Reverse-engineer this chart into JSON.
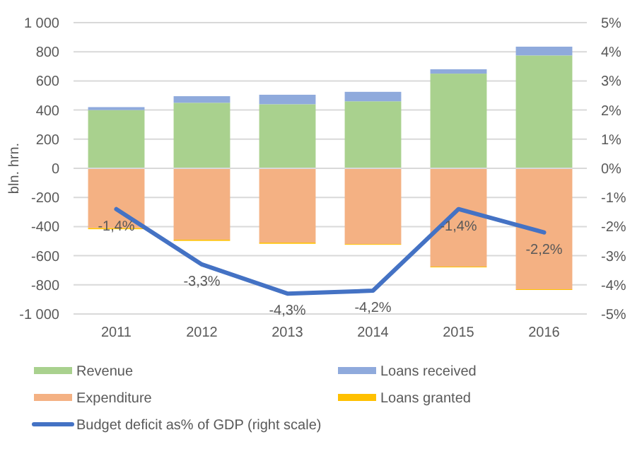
{
  "chart_data": {
    "type": "bar",
    "stacked": true,
    "ylabel": "bln. hrn.",
    "categories": [
      "2011",
      "2012",
      "2013",
      "2014",
      "2015",
      "2016"
    ],
    "ylim": [
      -1000,
      1000
    ],
    "yticks": [
      {
        "value": -1000,
        "label": "-1 000"
      },
      -800,
      -600,
      -400,
      -200,
      0,
      200,
      400,
      600,
      800,
      {
        "value": 1000,
        "label": "1 000"
      }
    ],
    "y2lim": [
      -5,
      5
    ],
    "y2ticks": [
      {
        "value": -5,
        "label": "-5%"
      },
      {
        "value": -4,
        "label": "-4%"
      },
      {
        "value": -3,
        "label": "-3%"
      },
      {
        "value": -2,
        "label": "-2%"
      },
      {
        "value": -1,
        "label": "-1%"
      },
      {
        "value": 0,
        "label": "0%"
      },
      {
        "value": 1,
        "label": "1%"
      },
      {
        "value": 2,
        "label": "2%"
      },
      {
        "value": 3,
        "label": "3%"
      },
      {
        "value": 4,
        "label": "4%"
      },
      {
        "value": 5,
        "label": "5%"
      }
    ],
    "grid": "y",
    "legend": "bottom",
    "series": [
      {
        "name": "Revenue",
        "color": "#a9d18e",
        "values": [
          400,
          450,
          440,
          460,
          650,
          775
        ]
      },
      {
        "name": "Loans received",
        "color": "#8faadc",
        "values": [
          20,
          45,
          65,
          65,
          30,
          60
        ]
      },
      {
        "name": "Expenditure",
        "color": "#f4b183",
        "values": [
          -410,
          -490,
          -510,
          -520,
          -675,
          -830
        ]
      },
      {
        "name": "Loans granted",
        "color": "#ffc000",
        "values": [
          -8,
          -8,
          -8,
          -5,
          -5,
          -5
        ]
      },
      {
        "name": "Budget deficit as% of GDP (right scale)",
        "type": "line",
        "axis": "y2",
        "color": "#4472c4",
        "values": [
          -1.4,
          -3.3,
          -4.3,
          -4.2,
          -1.4,
          -2.2
        ],
        "value_labels": [
          "-1,4%",
          "-3,3%",
          "-4,3%",
          "-4,2%",
          "-1,4%",
          "-2,2%"
        ]
      }
    ]
  }
}
